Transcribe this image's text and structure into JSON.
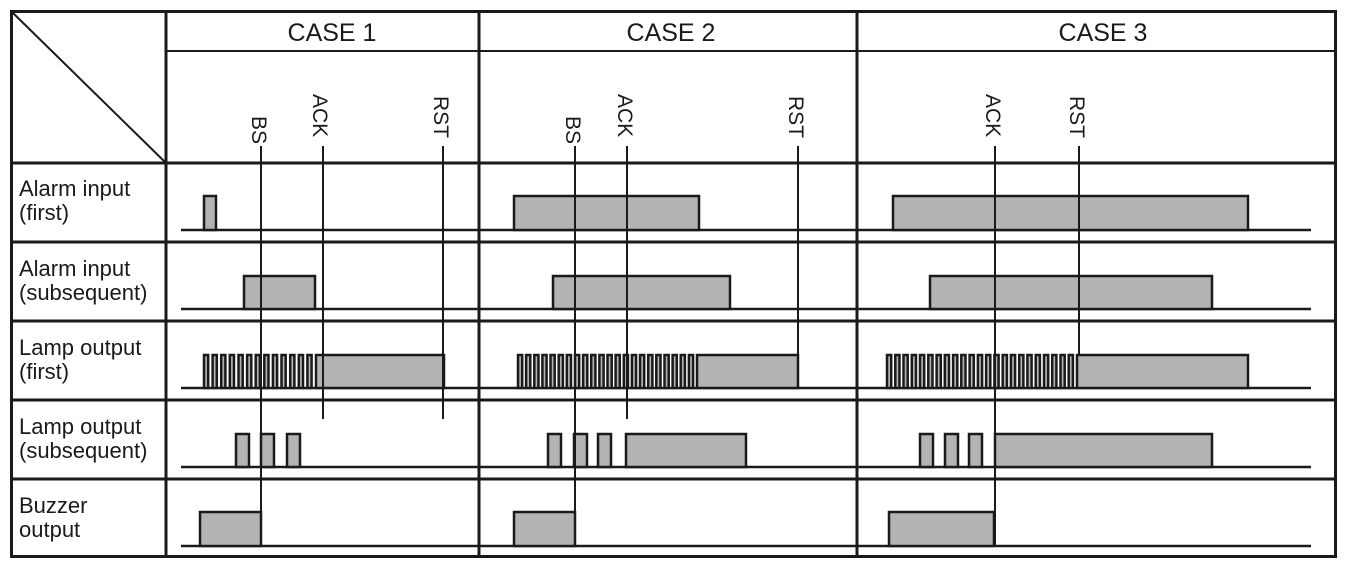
{
  "header": {
    "cases": [
      "CASE 1",
      "CASE 2",
      "CASE 3"
    ]
  },
  "rows": [
    {
      "label_line1": "Alarm input",
      "label_line2": "(first)"
    },
    {
      "label_line1": "Alarm input",
      "label_line2": "(subsequent)"
    },
    {
      "label_line1": "Lamp output",
      "label_line2": "(first)"
    },
    {
      "label_line1": "Lamp output",
      "label_line2": "(subsequent)"
    },
    {
      "label_line1": "Buzzer",
      "label_line2": "output"
    }
  ],
  "signals": {
    "bs": "BS",
    "ack": "ACK",
    "rst": "RST"
  },
  "colors": {
    "line": "#1a1a1a",
    "pulse_fill": "#b3b3b3"
  }
}
